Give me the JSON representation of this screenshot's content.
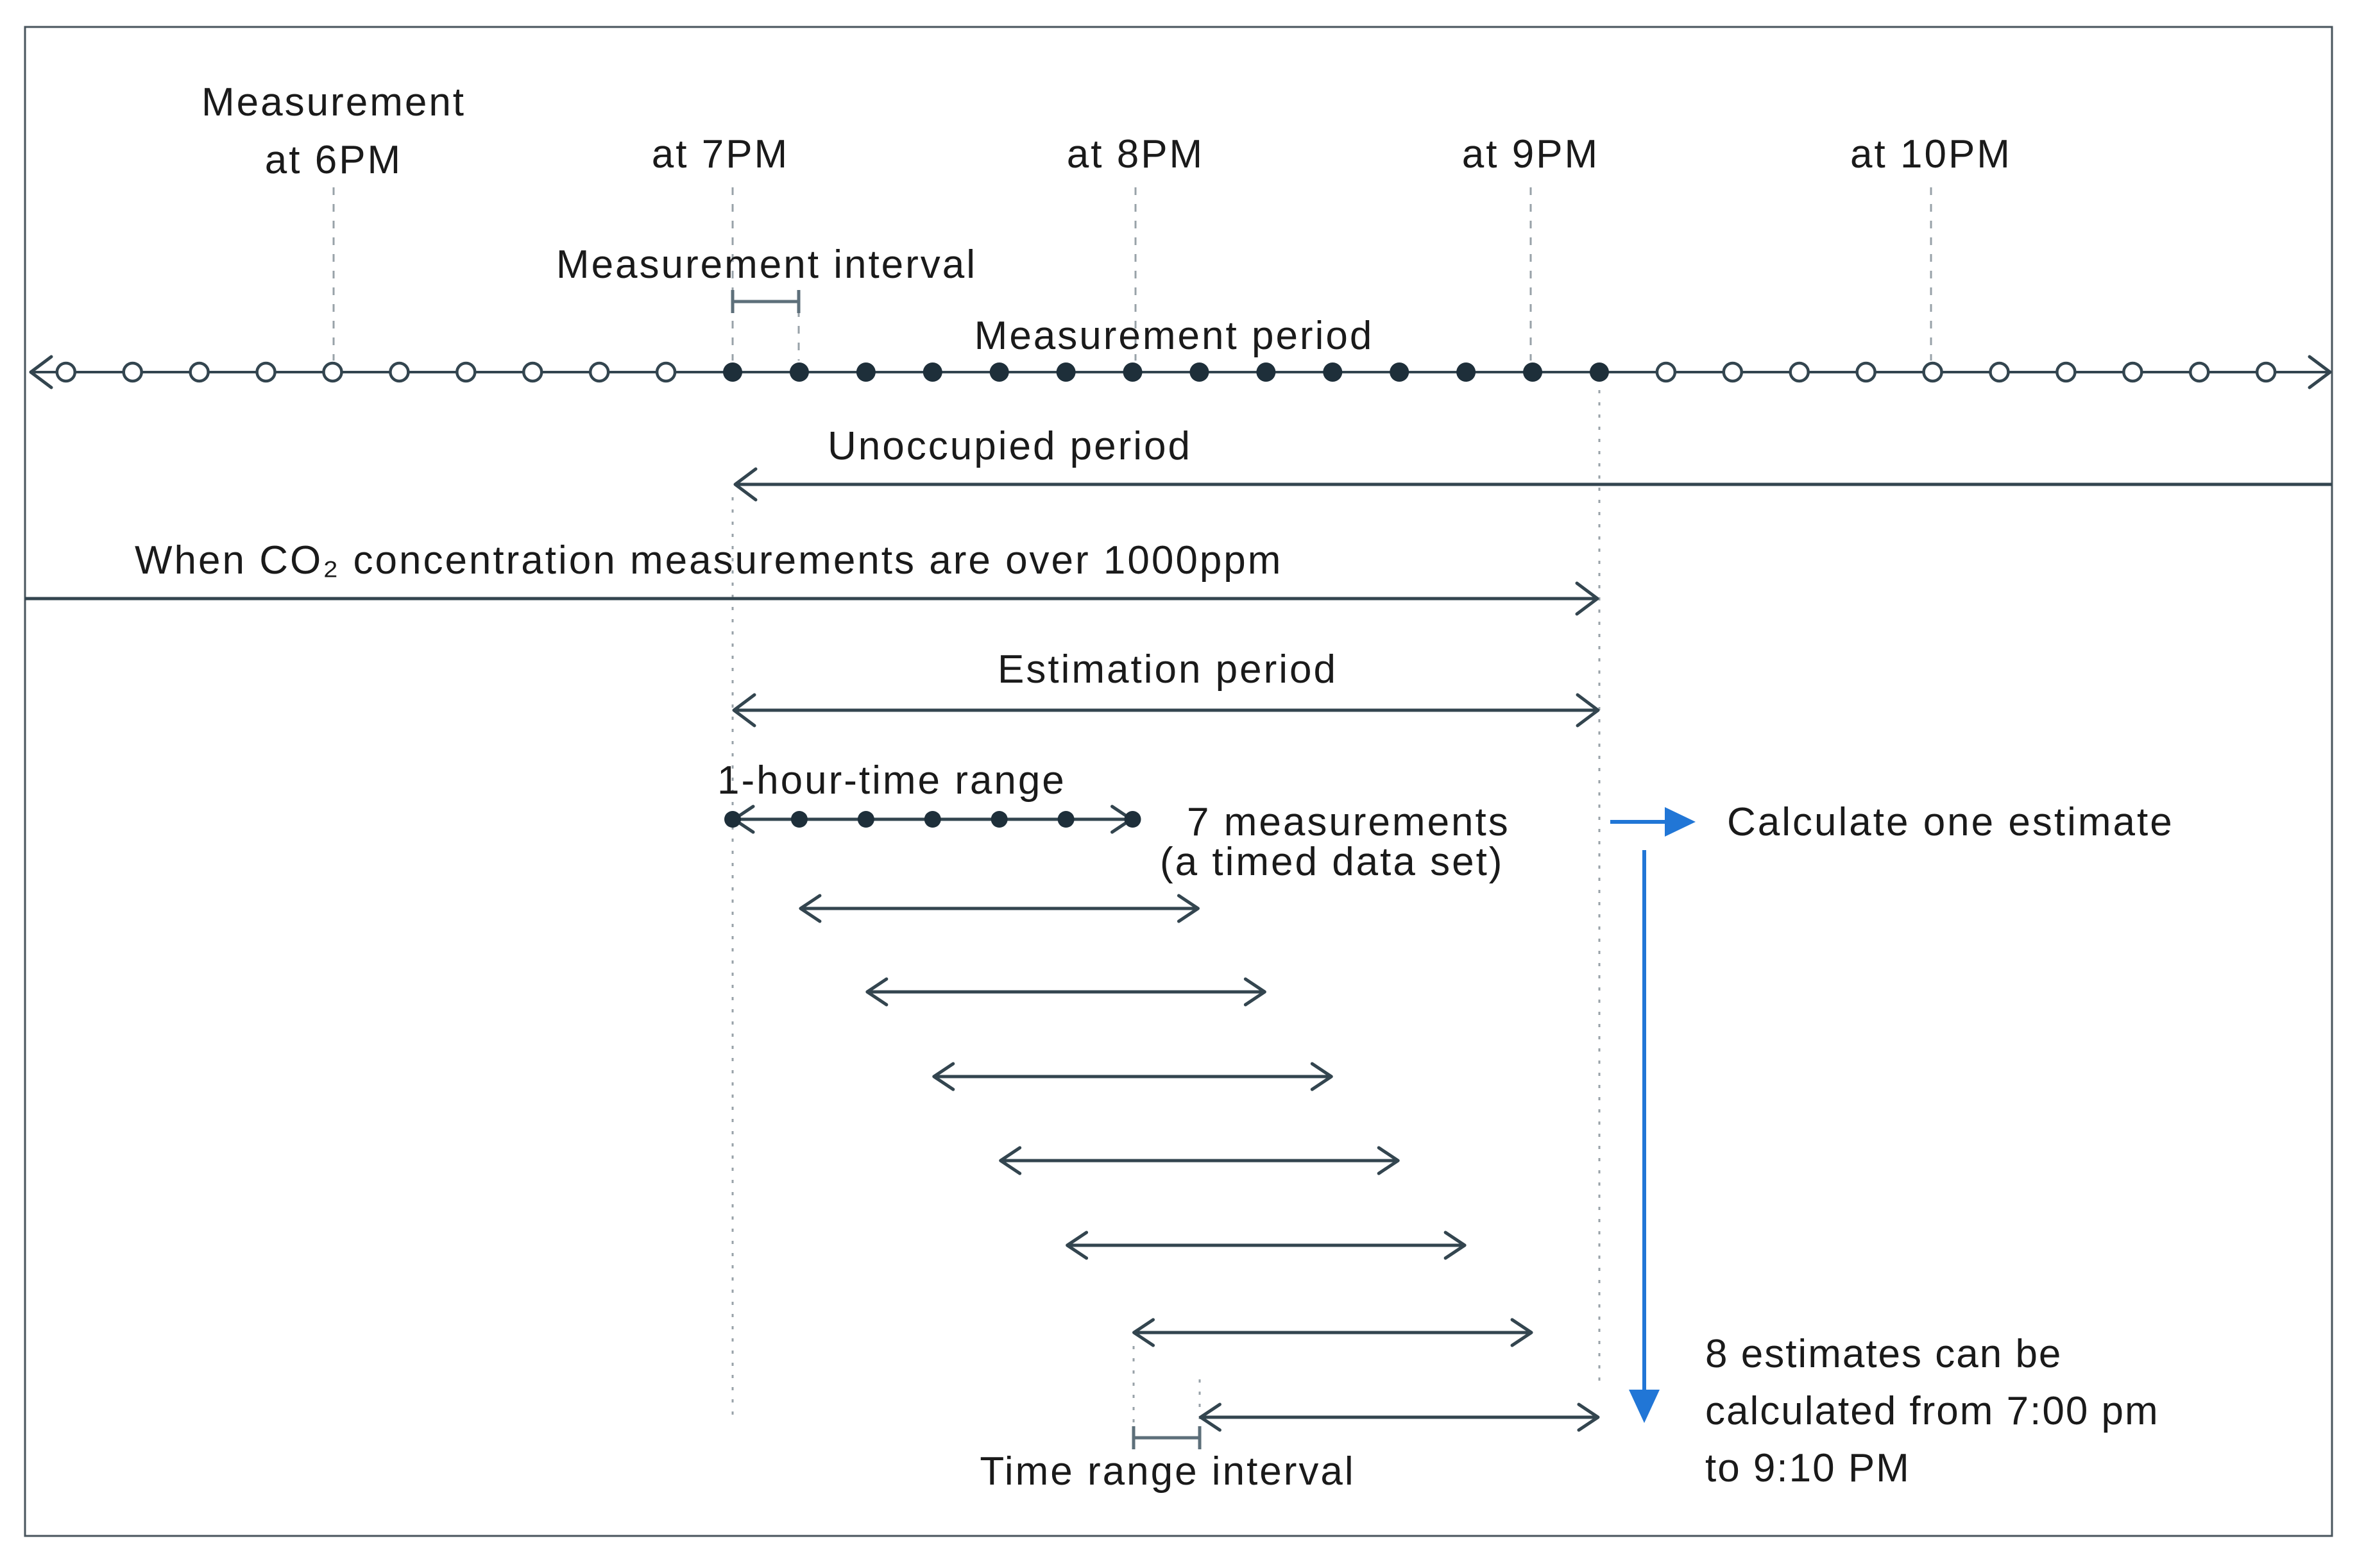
{
  "diagram": {
    "title_labels": {
      "measurement_at_6pm_line1": "Measurement",
      "measurement_at_6pm_line2": "at 6PM",
      "at_7pm": "at 7PM",
      "at_8pm": "at 8PM",
      "at_9pm": "at 9PM",
      "at_10pm": "at 10PM"
    },
    "annotations": {
      "measurement_interval": "Measurement interval",
      "measurement_period": "Measurement period",
      "unoccupied_period": "Unoccupied period",
      "co2_condition": "When CO₂ concentration measurements are over 1000ppm",
      "estimation_period": "Estimation period",
      "one_hour_time_range": "1-hour-time range",
      "seven_measurements": "7 measurements",
      "timed_data_set": "(a timed data set)",
      "calculate_one_estimate": "Calculate one estimate",
      "eight_estimates_line1": "8 estimates can be",
      "eight_estimates_line2": "calculated from 7:00 pm",
      "eight_estimates_line3": "to 9:10 PM",
      "time_range_interval": "Time range interval"
    },
    "timeline": {
      "open_circles_before": 10,
      "filled_dots": 14,
      "open_circles_after": 10,
      "range_dots": 7,
      "time_ranges": 8
    },
    "colors": {
      "line": "#33454f",
      "dot_fill": "#1e2f3a",
      "guide": "#98a2a8",
      "accent_blue": "#2176d6",
      "bracket": "#5d6f7a",
      "text": "#1a1a1a",
      "border": "#49555d"
    }
  }
}
